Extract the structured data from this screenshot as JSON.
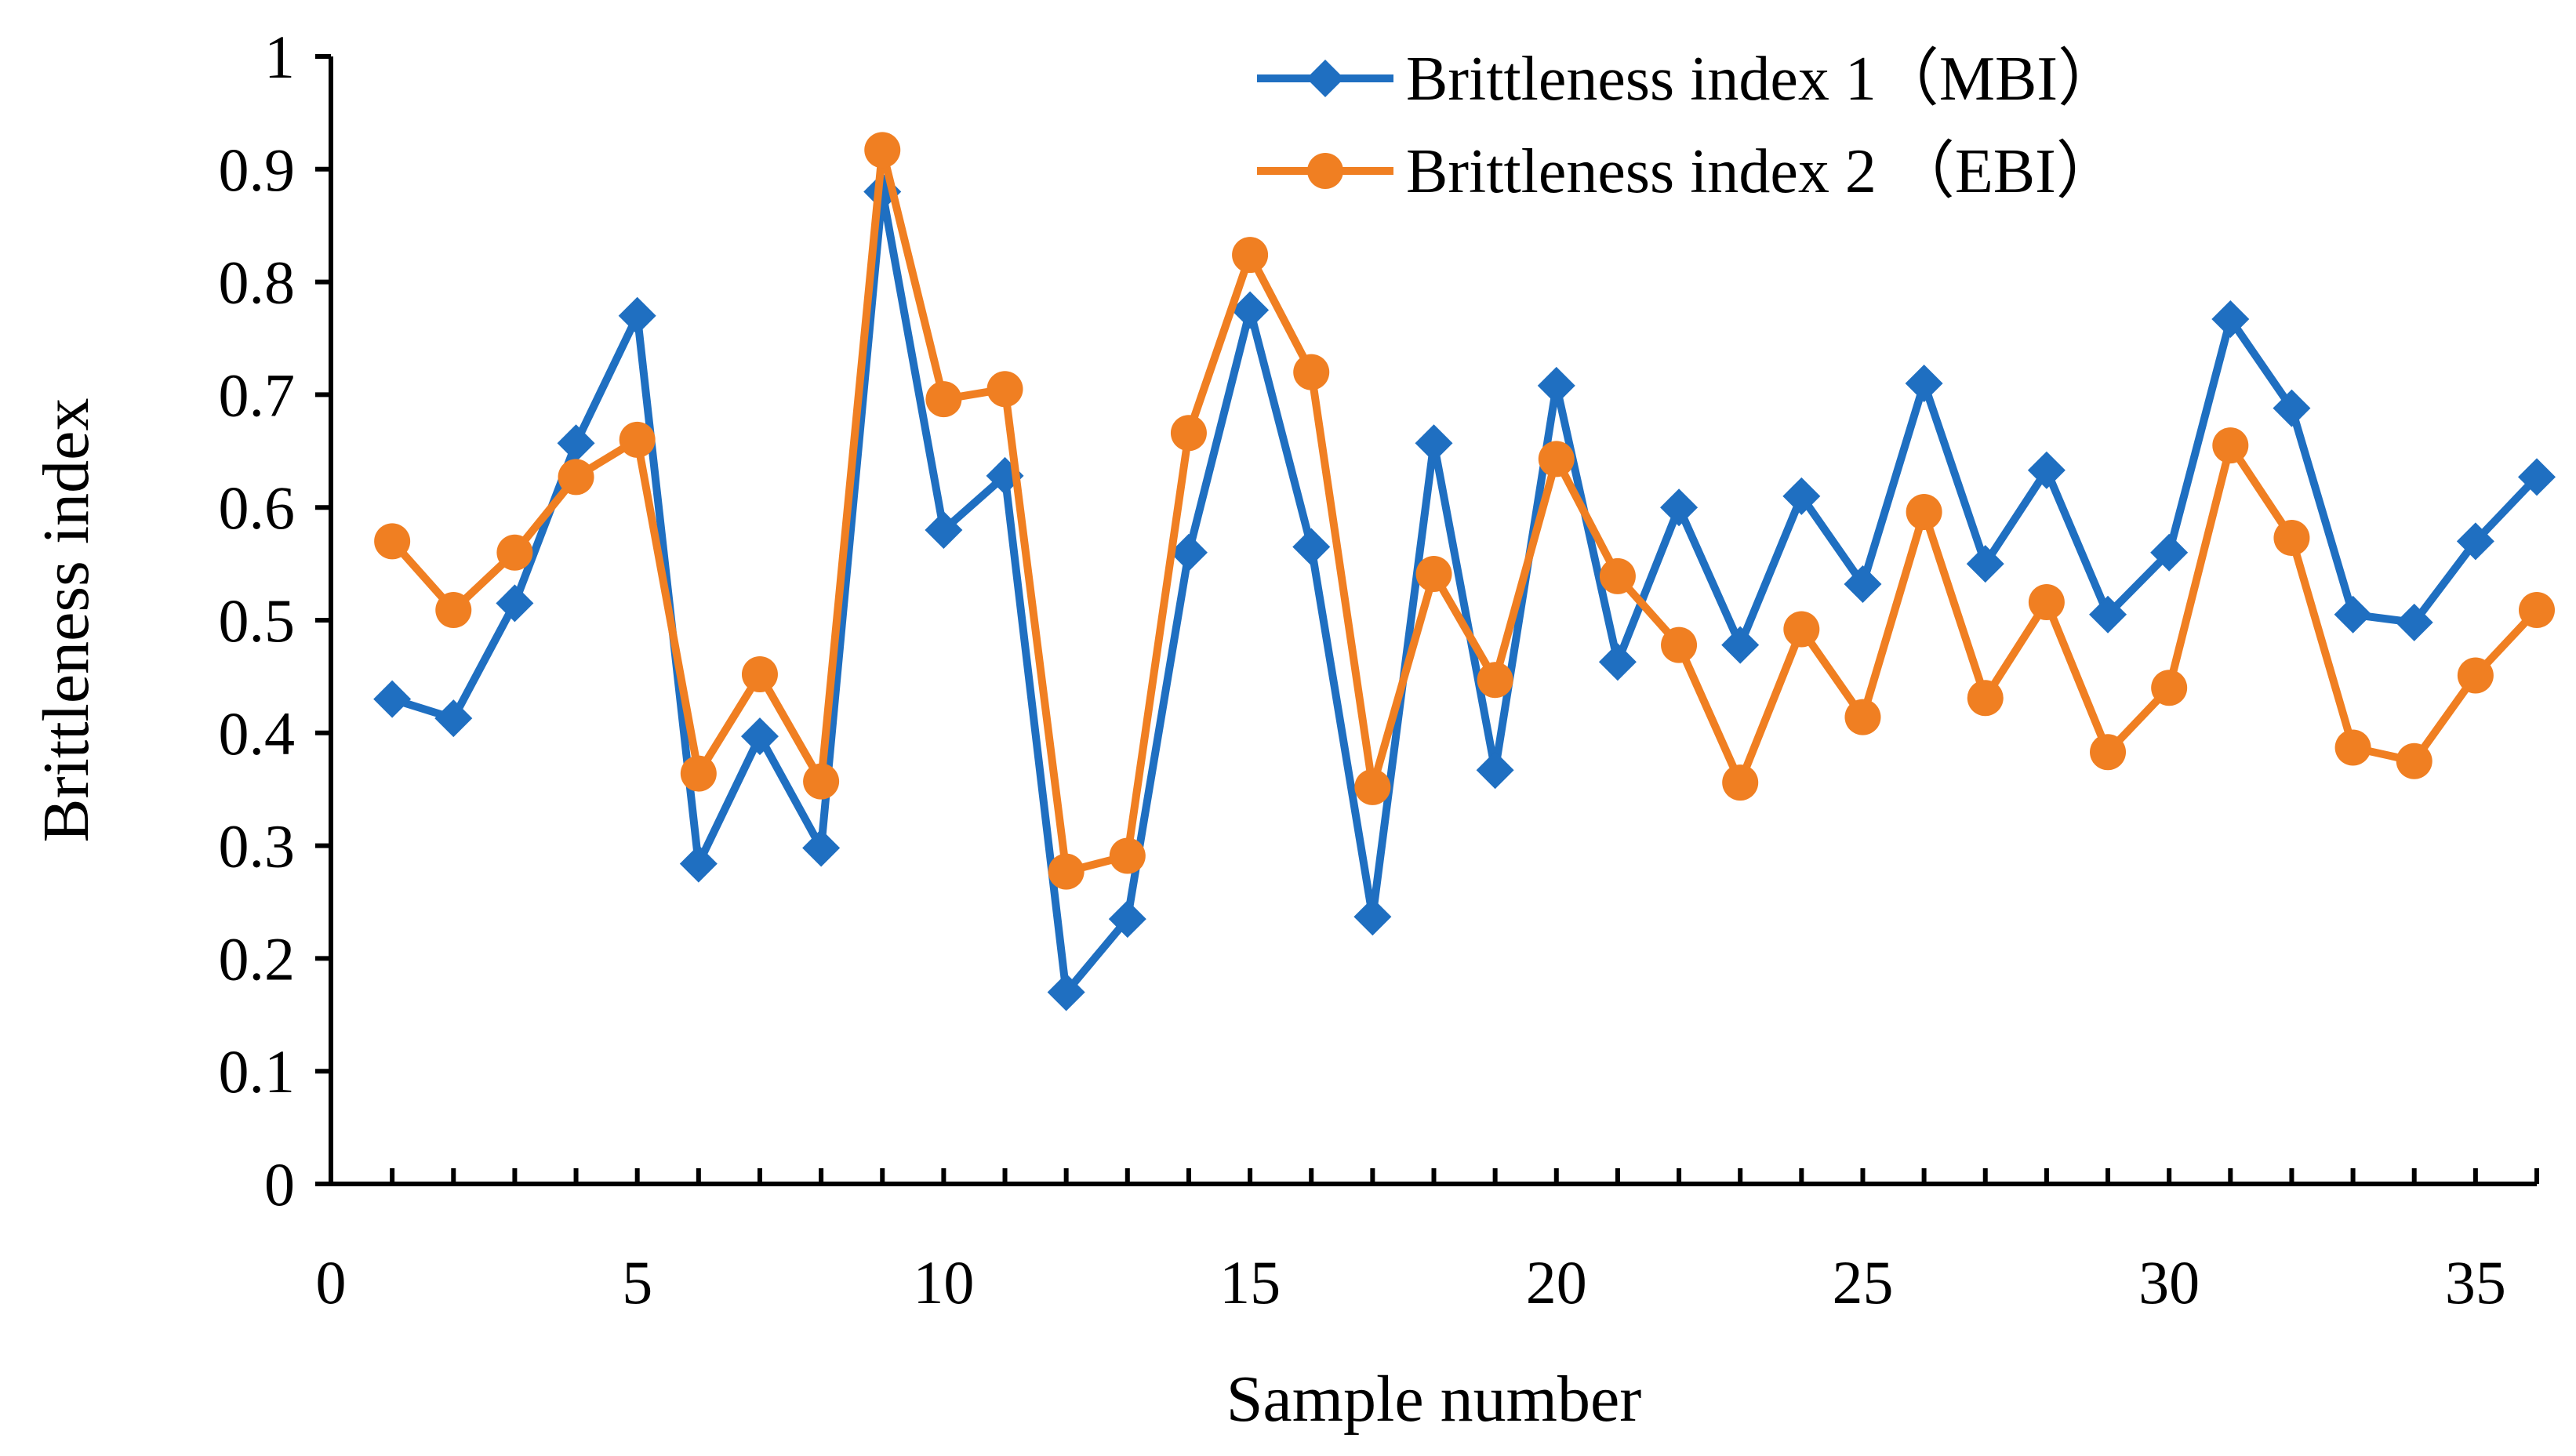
{
  "chart_data": {
    "type": "line",
    "title": "",
    "xlabel": "Sample number",
    "ylabel": "Brittleness index",
    "xlim": [
      0,
      36
    ],
    "ylim": [
      0,
      1
    ],
    "x_ticks": [
      "0",
      "5",
      "10",
      "15",
      "20",
      "25",
      "30",
      "35"
    ],
    "x_tick_values": [
      0,
      5,
      10,
      15,
      20,
      25,
      30,
      35
    ],
    "y_ticks": [
      "0",
      "0.1",
      "0.2",
      "0.3",
      "0.4",
      "0.5",
      "0.6",
      "0.7",
      "0.8",
      "0.9",
      "1"
    ],
    "y_tick_values": [
      0,
      0.1,
      0.2,
      0.3,
      0.4,
      0.5,
      0.6,
      0.7,
      0.8,
      0.9,
      1
    ],
    "grid": false,
    "legend_position": "top-right",
    "x": [
      1,
      2,
      3,
      4,
      5,
      6,
      7,
      8,
      9,
      10,
      11,
      12,
      13,
      14,
      15,
      16,
      17,
      18,
      19,
      20,
      21,
      22,
      23,
      24,
      25,
      26,
      27,
      28,
      29,
      30,
      31,
      32,
      33,
      34,
      35,
      36
    ],
    "series": [
      {
        "name": "Brittleness index 1（MBI）",
        "color": "#1f6fc1",
        "marker": "diamond",
        "values": [
          0.43,
          0.413,
          0.515,
          0.657,
          0.77,
          0.284,
          0.397,
          0.298,
          0.88,
          0.58,
          0.628,
          0.17,
          0.235,
          0.56,
          0.775,
          0.565,
          0.237,
          0.657,
          0.367,
          0.708,
          0.463,
          0.6,
          0.478,
          0.61,
          0.532,
          0.71,
          0.55,
          0.633,
          0.505,
          0.56,
          0.767,
          0.688,
          0.505,
          0.498,
          0.57,
          0.627
        ]
      },
      {
        "name": "Brittleness index 2 （EBI）",
        "color": "#f07f22",
        "marker": "circle",
        "values": [
          0.57,
          0.509,
          0.56,
          0.627,
          0.66,
          0.364,
          0.452,
          0.357,
          0.917,
          0.696,
          0.705,
          0.277,
          0.291,
          0.666,
          0.824,
          0.72,
          0.352,
          0.541,
          0.447,
          0.643,
          0.539,
          0.478,
          0.356,
          0.492,
          0.414,
          0.596,
          0.431,
          0.516,
          0.383,
          0.44,
          0.655,
          0.573,
          0.387,
          0.375,
          0.451,
          0.509
        ]
      }
    ]
  }
}
